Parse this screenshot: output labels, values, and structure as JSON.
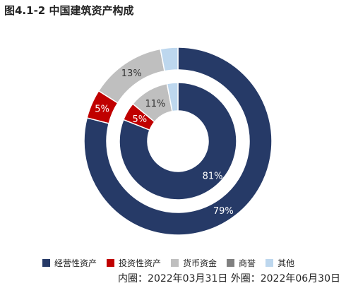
{
  "title": "图4.1-2 中国建筑资产构成",
  "footnote": "内圈：2022年03月31日 外圈：2022年06月30日",
  "chart_data": {
    "type": "pie",
    "style": "nested-donut",
    "categories": [
      "经营性资产",
      "投资性资产",
      "货币资金",
      "商誉",
      "其他"
    ],
    "colors": [
      "#263A67",
      "#C00000",
      "#BFBFBF",
      "#808080",
      "#BDD7EE"
    ],
    "series": [
      {
        "ring": "inner",
        "values": [
          81,
          5,
          11,
          0,
          3
        ],
        "labels": [
          "81%",
          "5%",
          "11%",
          "",
          ""
        ]
      },
      {
        "ring": "outer",
        "values": [
          79,
          5,
          13,
          0,
          3
        ],
        "labels": [
          "79%",
          "5%",
          "13%",
          "",
          ""
        ]
      }
    ],
    "legend": "bottom"
  }
}
